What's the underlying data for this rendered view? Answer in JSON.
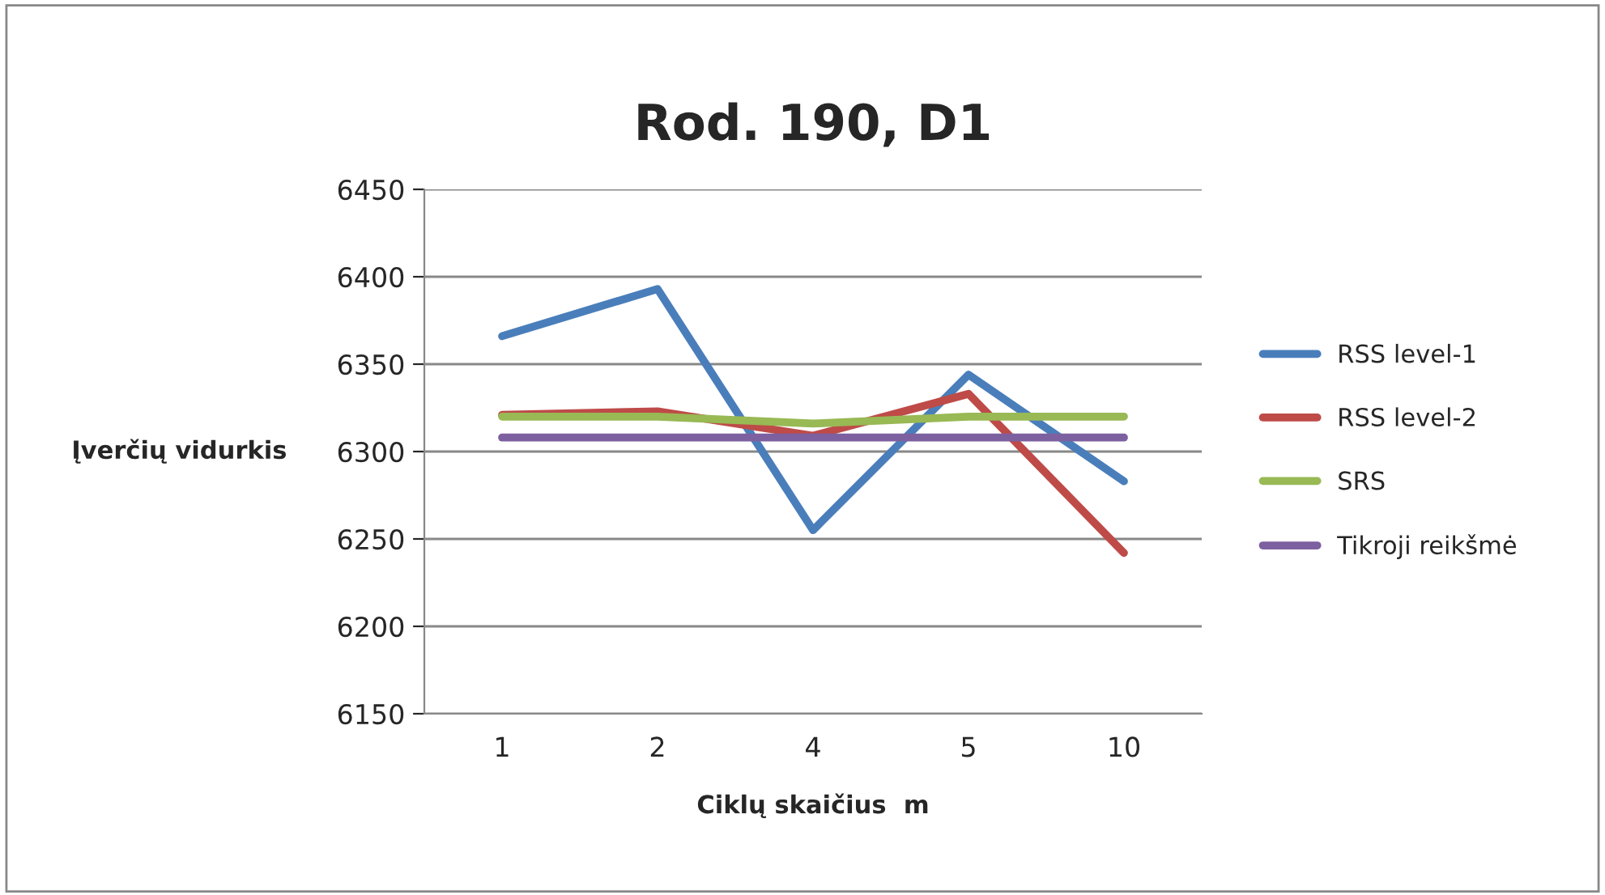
{
  "chart_data": {
    "type": "line",
    "title": "Rod. 190, D1",
    "xlabel": "Ciklų skaičius  m",
    "ylabel": "Įverčių vidurkis",
    "categories": [
      "1",
      "2",
      "4",
      "5",
      "10"
    ],
    "series": [
      {
        "name": "RSS level-1",
        "color": "#4a7ebb",
        "values": [
          6366,
          6393,
          6255,
          6344,
          6283
        ]
      },
      {
        "name": "RSS level-2",
        "color": "#be4b48",
        "values": [
          6321,
          6323,
          6309,
          6333,
          6242
        ]
      },
      {
        "name": "SRS",
        "color": "#98b954",
        "values": [
          6320,
          6320,
          6316,
          6320,
          6320
        ]
      },
      {
        "name": "Tikroji reikšmė",
        "color": "#7d60a0",
        "values": [
          6308,
          6308,
          6308,
          6308,
          6308
        ]
      }
    ],
    "ylim": [
      6150,
      6450
    ],
    "yticks": [
      6150,
      6200,
      6250,
      6300,
      6350,
      6400,
      6450
    ],
    "grid": "y",
    "legend": "right",
    "marker": "none",
    "line_style": "solid"
  }
}
